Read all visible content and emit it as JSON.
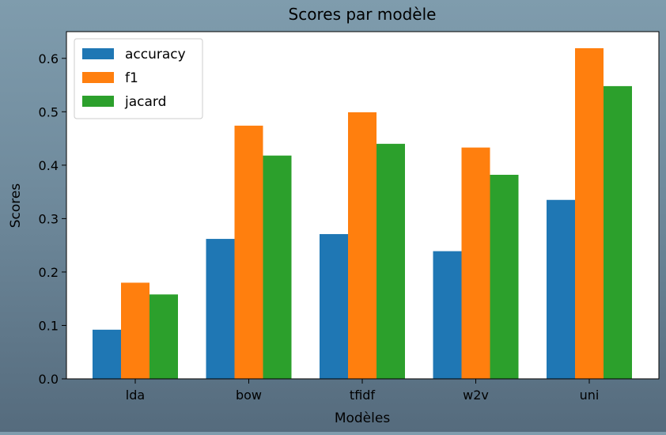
{
  "chart_data": {
    "type": "bar",
    "title": "Scores par modèle",
    "xlabel": "Modèles",
    "ylabel": "Scores",
    "categories": [
      "lda",
      "bow",
      "tfidf",
      "w2v",
      "uni"
    ],
    "series": [
      {
        "name": "accuracy",
        "color": "#1f77b4",
        "values": [
          0.092,
          0.262,
          0.271,
          0.239,
          0.335
        ]
      },
      {
        "name": "f1",
        "color": "#ff7f0e",
        "values": [
          0.18,
          0.474,
          0.499,
          0.433,
          0.619
        ]
      },
      {
        "name": "jacard",
        "color": "#2ca02c",
        "values": [
          0.158,
          0.418,
          0.44,
          0.382,
          0.548
        ]
      }
    ],
    "ylim": [
      0,
      0.65
    ],
    "yticks": [
      0.0,
      0.1,
      0.2,
      0.3,
      0.4,
      0.5,
      0.6
    ],
    "ytick_labels": [
      "0.0",
      "0.1",
      "0.2",
      "0.3",
      "0.4",
      "0.5",
      "0.6"
    ],
    "grid": false,
    "legend_position": "top-left"
  }
}
